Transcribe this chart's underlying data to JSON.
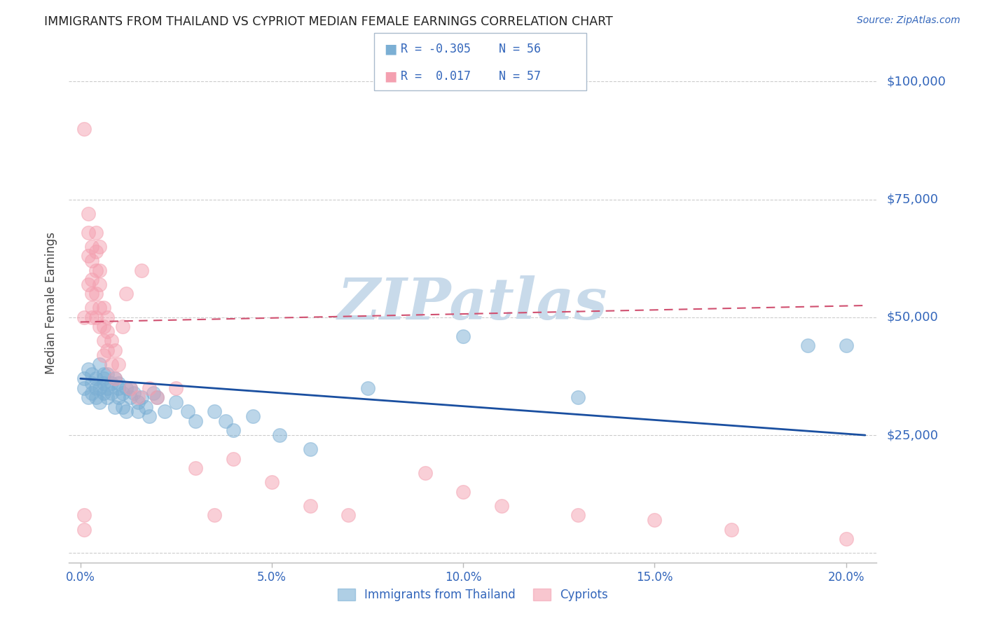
{
  "title": "IMMIGRANTS FROM THAILAND VS CYPRIOT MEDIAN FEMALE EARNINGS CORRELATION CHART",
  "source": "Source: ZipAtlas.com",
  "ylabel": "Median Female Earnings",
  "xlabel_ticks": [
    "0.0%",
    "5.0%",
    "10.0%",
    "15.0%",
    "20.0%"
  ],
  "xlabel_vals": [
    0.0,
    0.05,
    0.1,
    0.15,
    0.2
  ],
  "ytick_vals": [
    0,
    25000,
    50000,
    75000,
    100000
  ],
  "ytick_labels": [
    "",
    "$25,000",
    "$50,000",
    "$75,000",
    "$100,000"
  ],
  "xlim": [
    -0.003,
    0.208
  ],
  "ylim": [
    -2000,
    108000
  ],
  "legend_blue_r": "-0.305",
  "legend_blue_n": "56",
  "legend_pink_r": "0.017",
  "legend_pink_n": "57",
  "legend_blue_label": "Immigrants from Thailand",
  "legend_pink_label": "Cypriots",
  "watermark": "ZIPatlas",
  "watermark_color": "#c8daea",
  "blue_color": "#7bafd4",
  "pink_color": "#f4a0b0",
  "blue_line_color": "#1a4fa0",
  "pink_line_color": "#d05070",
  "title_color": "#222222",
  "axis_label_color": "#3366bb",
  "grid_color": "#cccccc",
  "blue_scatter_x": [
    0.001,
    0.001,
    0.002,
    0.002,
    0.003,
    0.003,
    0.003,
    0.004,
    0.004,
    0.004,
    0.005,
    0.005,
    0.005,
    0.006,
    0.006,
    0.006,
    0.006,
    0.007,
    0.007,
    0.007,
    0.008,
    0.008,
    0.009,
    0.009,
    0.01,
    0.01,
    0.01,
    0.011,
    0.011,
    0.012,
    0.012,
    0.013,
    0.013,
    0.014,
    0.015,
    0.015,
    0.016,
    0.017,
    0.018,
    0.019,
    0.02,
    0.022,
    0.025,
    0.028,
    0.03,
    0.035,
    0.038,
    0.04,
    0.045,
    0.052,
    0.06,
    0.075,
    0.1,
    0.13,
    0.19,
    0.2
  ],
  "blue_scatter_y": [
    37000,
    35000,
    39000,
    33000,
    36000,
    34000,
    38000,
    37000,
    33000,
    35000,
    40000,
    35000,
    32000,
    38000,
    36000,
    34000,
    37000,
    35000,
    33000,
    38000,
    36000,
    34000,
    37000,
    31000,
    35000,
    33000,
    36000,
    34000,
    31000,
    35000,
    30000,
    33000,
    35000,
    34000,
    32000,
    30000,
    33000,
    31000,
    29000,
    34000,
    33000,
    30000,
    32000,
    30000,
    28000,
    30000,
    28000,
    26000,
    29000,
    25000,
    22000,
    35000,
    46000,
    33000,
    44000,
    44000
  ],
  "pink_scatter_x": [
    0.001,
    0.001,
    0.001,
    0.001,
    0.002,
    0.002,
    0.002,
    0.002,
    0.003,
    0.003,
    0.003,
    0.003,
    0.003,
    0.003,
    0.004,
    0.004,
    0.004,
    0.004,
    0.004,
    0.005,
    0.005,
    0.005,
    0.005,
    0.005,
    0.006,
    0.006,
    0.006,
    0.006,
    0.007,
    0.007,
    0.007,
    0.008,
    0.008,
    0.009,
    0.009,
    0.01,
    0.011,
    0.012,
    0.013,
    0.015,
    0.016,
    0.018,
    0.02,
    0.025,
    0.03,
    0.035,
    0.04,
    0.05,
    0.06,
    0.07,
    0.09,
    0.1,
    0.11,
    0.13,
    0.15,
    0.17,
    0.2
  ],
  "pink_scatter_y": [
    90000,
    50000,
    8000,
    5000,
    72000,
    68000,
    63000,
    57000,
    65000,
    62000,
    58000,
    55000,
    52000,
    50000,
    68000,
    64000,
    60000,
    55000,
    50000,
    65000,
    60000,
    57000,
    52000,
    48000,
    52000,
    48000,
    45000,
    42000,
    50000,
    47000,
    43000,
    45000,
    40000,
    43000,
    37000,
    40000,
    48000,
    55000,
    35000,
    33000,
    60000,
    35000,
    33000,
    35000,
    18000,
    8000,
    20000,
    15000,
    10000,
    8000,
    17000,
    13000,
    10000,
    8000,
    7000,
    5000,
    3000
  ],
  "blue_trend_x0": 0.0,
  "blue_trend_y0": 37000,
  "blue_trend_x1": 0.205,
  "blue_trend_y1": 25000,
  "pink_trend_x0": 0.0,
  "pink_trend_y0": 49000,
  "pink_trend_x1": 0.205,
  "pink_trend_y1": 52500
}
